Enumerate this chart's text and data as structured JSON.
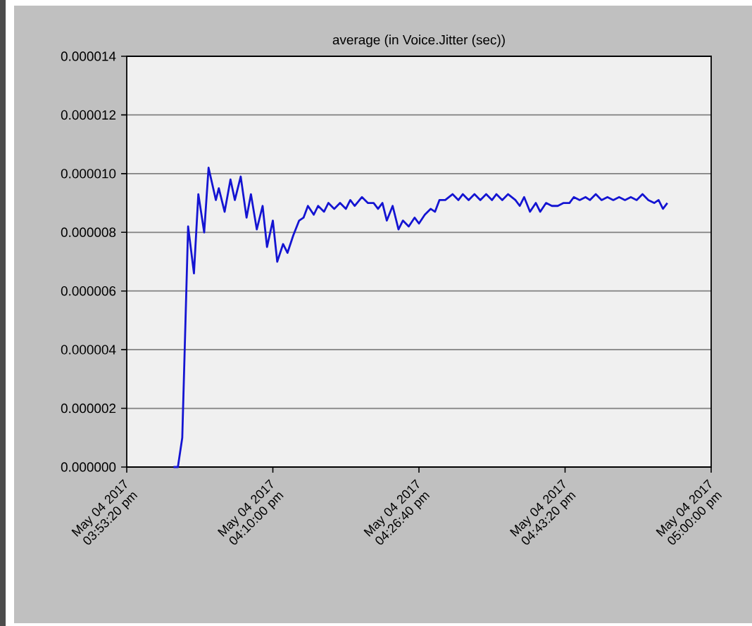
{
  "chart_data": {
    "type": "line",
    "title": "average (in Voice.Jitter (sec))",
    "x": [
      "2017-05-04T15:58:40",
      "2017-05-04T15:59:10",
      "2017-05-04T15:59:40",
      "2017-05-04T16:00:20",
      "2017-05-04T16:01:00",
      "2017-05-04T16:01:30",
      "2017-05-04T16:02:10",
      "2017-05-04T16:02:40",
      "2017-05-04T16:03:30",
      "2017-05-04T16:03:50",
      "2017-05-04T16:04:30",
      "2017-05-04T16:05:10",
      "2017-05-04T16:05:40",
      "2017-05-04T16:06:20",
      "2017-05-04T16:07:00",
      "2017-05-04T16:07:30",
      "2017-05-04T16:08:10",
      "2017-05-04T16:08:50",
      "2017-05-04T16:09:20",
      "2017-05-04T16:10:00",
      "2017-05-04T16:10:30",
      "2017-05-04T16:11:10",
      "2017-05-04T16:11:40",
      "2017-05-04T16:12:20",
      "2017-05-04T16:13:00",
      "2017-05-04T16:13:30",
      "2017-05-04T16:14:00",
      "2017-05-04T16:14:40",
      "2017-05-04T16:15:10",
      "2017-05-04T16:15:50",
      "2017-05-04T16:16:20",
      "2017-05-04T16:17:00",
      "2017-05-04T16:17:40",
      "2017-05-04T16:18:20",
      "2017-05-04T16:18:50",
      "2017-05-04T16:19:20",
      "2017-05-04T16:20:10",
      "2017-05-04T16:20:50",
      "2017-05-04T16:21:30",
      "2017-05-04T16:22:00",
      "2017-05-04T16:22:30",
      "2017-05-04T16:23:00",
      "2017-05-04T16:23:40",
      "2017-05-04T16:24:20",
      "2017-05-04T16:24:50",
      "2017-05-04T16:25:30",
      "2017-05-04T16:26:10",
      "2017-05-04T16:26:40",
      "2017-05-04T16:27:20",
      "2017-05-04T16:28:00",
      "2017-05-04T16:28:30",
      "2017-05-04T16:29:00",
      "2017-05-04T16:29:40",
      "2017-05-04T16:30:30",
      "2017-05-04T16:31:10",
      "2017-05-04T16:31:40",
      "2017-05-04T16:32:20",
      "2017-05-04T16:33:00",
      "2017-05-04T16:33:40",
      "2017-05-04T16:34:20",
      "2017-05-04T16:35:00",
      "2017-05-04T16:35:30",
      "2017-05-04T16:36:10",
      "2017-05-04T16:36:50",
      "2017-05-04T16:37:40",
      "2017-05-04T16:38:10",
      "2017-05-04T16:38:40",
      "2017-05-04T16:39:20",
      "2017-05-04T16:40:00",
      "2017-05-04T16:40:30",
      "2017-05-04T16:41:10",
      "2017-05-04T16:41:50",
      "2017-05-04T16:42:30",
      "2017-05-04T16:43:10",
      "2017-05-04T16:43:50",
      "2017-05-04T16:44:20",
      "2017-05-04T16:45:00",
      "2017-05-04T16:45:40",
      "2017-05-04T16:46:10",
      "2017-05-04T16:46:50",
      "2017-05-04T16:47:30",
      "2017-05-04T16:48:10",
      "2017-05-04T16:48:50",
      "2017-05-04T16:49:30",
      "2017-05-04T16:50:10",
      "2017-05-04T16:50:50",
      "2017-05-04T16:51:30",
      "2017-05-04T16:52:10",
      "2017-05-04T16:52:50",
      "2017-05-04T16:53:30",
      "2017-05-04T16:54:00",
      "2017-05-04T16:54:30",
      "2017-05-04T16:55:00"
    ],
    "series": [
      {
        "color": "#1414d2",
        "values": [
          0,
          0,
          1e-06,
          8.2e-06,
          6.6e-06,
          9.3e-06,
          8e-06,
          1.02e-05,
          9.1e-06,
          9.5e-06,
          8.7e-06,
          9.8e-06,
          9.1e-06,
          9.9e-06,
          8.5e-06,
          9.3e-06,
          8.1e-06,
          8.9e-06,
          7.5e-06,
          8.4e-06,
          7e-06,
          7.6e-06,
          7.3e-06,
          7.9e-06,
          8.4e-06,
          8.5e-06,
          8.9e-06,
          8.6e-06,
          8.9e-06,
          8.7e-06,
          9e-06,
          8.8e-06,
          9e-06,
          8.8e-06,
          9.1e-06,
          8.9e-06,
          9.2e-06,
          9e-06,
          9e-06,
          8.8e-06,
          9e-06,
          8.4e-06,
          8.9e-06,
          8.1e-06,
          8.4e-06,
          8.2e-06,
          8.5e-06,
          8.3e-06,
          8.6e-06,
          8.8e-06,
          8.7e-06,
          9.1e-06,
          9.1e-06,
          9.3e-06,
          9.1e-06,
          9.3e-06,
          9.1e-06,
          9.3e-06,
          9.1e-06,
          9.3e-06,
          9.1e-06,
          9.3e-06,
          9.1e-06,
          9.3e-06,
          9.1e-06,
          8.9e-06,
          9.2e-06,
          8.7e-06,
          9e-06,
          8.7e-06,
          9e-06,
          8.9e-06,
          8.9e-06,
          9e-06,
          9e-06,
          9.2e-06,
          9.1e-06,
          9.2e-06,
          9.1e-06,
          9.3e-06,
          9.1e-06,
          9.2e-06,
          9.1e-06,
          9.2e-06,
          9.1e-06,
          9.2e-06,
          9.1e-06,
          9.3e-06,
          9.1e-06,
          9e-06,
          9.1e-06,
          8.8e-06,
          9e-06
        ]
      }
    ],
    "xlim": [
      "2017-05-04T15:53:20",
      "2017-05-04T17:00:00"
    ],
    "xticks": [
      {
        "value": "2017-05-04T15:53:20",
        "label": "May 04 2017 03:53:20 pm"
      },
      {
        "value": "2017-05-04T16:10:00",
        "label": "May 04 2017 04:10:00 pm"
      },
      {
        "value": "2017-05-04T16:26:40",
        "label": "May 04 2017 04:26:40 pm"
      },
      {
        "value": "2017-05-04T16:43:20",
        "label": "May 04 2017 04:43:20 pm"
      },
      {
        "value": "2017-05-04T17:00:00",
        "label": "May 04 2017 05:00:00 pm"
      }
    ],
    "ylim": [
      0,
      1.4e-05
    ],
    "yticks": [
      {
        "value": 0,
        "label": "0.000000"
      },
      {
        "value": 2e-06,
        "label": "0.000002"
      },
      {
        "value": 4e-06,
        "label": "0.000004"
      },
      {
        "value": 6e-06,
        "label": "0.000006"
      },
      {
        "value": 8e-06,
        "label": "0.000008"
      },
      {
        "value": 1e-05,
        "label": "0.000010"
      },
      {
        "value": 1.2e-05,
        "label": "0.000012"
      },
      {
        "value": 1.4e-05,
        "label": "0.000014"
      }
    ],
    "grid": "y"
  }
}
